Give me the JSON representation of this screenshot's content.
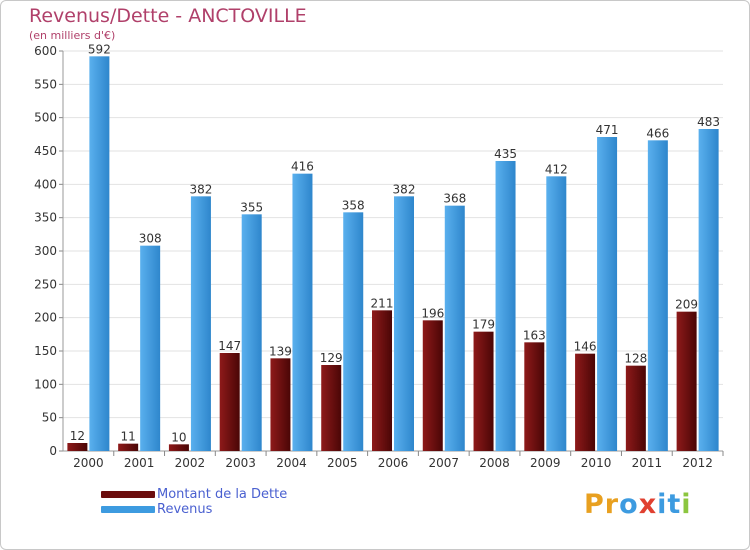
{
  "title": "Revenus/Dette - ANCTOVILLE",
  "subtitle": "(en milliers d'€)",
  "colors": {
    "dette": "#6b0d0d",
    "revenus": "#3d9be0",
    "title": "#b0406a",
    "legend_text": "#4a60d0"
  },
  "legend": {
    "items": [
      {
        "label": "Montant de la Dette",
        "color": "#6b0d0d"
      },
      {
        "label": "Revenus",
        "color": "#3d9be0"
      }
    ]
  },
  "logo": {
    "text": "Proxiti",
    "letters": [
      {
        "char": "P",
        "color": "#e8a020"
      },
      {
        "char": "r",
        "color": "#e8a020"
      },
      {
        "char": "o",
        "color": "#3d9be0"
      },
      {
        "char": "x",
        "color": "#e04030"
      },
      {
        "char": "i",
        "color": "#3d9be0"
      },
      {
        "char": "t",
        "color": "#3d9be0"
      },
      {
        "char": "i",
        "color": "#8cc63f"
      }
    ]
  },
  "chart_data": {
    "type": "bar",
    "title": "Revenus/Dette - ANCTOVILLE",
    "ylabel": "(en milliers d'€)",
    "xlabel": "",
    "categories": [
      "2000",
      "2001",
      "2002",
      "2003",
      "2004",
      "2005",
      "2006",
      "2007",
      "2008",
      "2009",
      "2010",
      "2011",
      "2012"
    ],
    "series": [
      {
        "name": "Montant de la Dette",
        "values": [
          12,
          11,
          10,
          147,
          139,
          129,
          211,
          196,
          179,
          163,
          146,
          128,
          209
        ]
      },
      {
        "name": "Revenus",
        "values": [
          592,
          308,
          382,
          355,
          416,
          358,
          382,
          368,
          435,
          412,
          471,
          466,
          483
        ]
      }
    ],
    "ylim": [
      0,
      600
    ],
    "yticks": [
      0,
      50,
      100,
      150,
      200,
      250,
      300,
      350,
      400,
      450,
      500,
      550,
      600
    ],
    "grid": true,
    "legend_position": "bottom-left"
  }
}
